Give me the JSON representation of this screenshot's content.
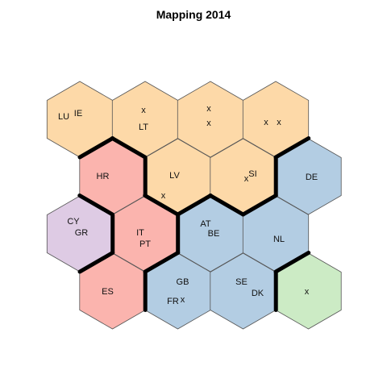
{
  "title": "Mapping 2014",
  "cluster_colors": {
    "orange": "#fdd9a8",
    "blue": "#b3cde3",
    "red": "#fbb4ae",
    "purple": "#decbe4",
    "green": "#ccebc5"
  },
  "rows": [
    [
      {
        "cluster": "orange",
        "labels": [
          "LU",
          "IE"
        ]
      },
      {
        "cluster": "orange",
        "labels": [
          "x",
          "LT"
        ]
      },
      {
        "cluster": "orange",
        "labels": [
          "x",
          "x"
        ]
      },
      {
        "cluster": "orange",
        "labels": [
          "x",
          "x"
        ]
      }
    ],
    [
      {
        "cluster": "red",
        "labels": [
          "HR"
        ]
      },
      {
        "cluster": "orange",
        "labels": [
          "LV",
          "x"
        ]
      },
      {
        "cluster": "orange",
        "labels": [
          "SI",
          "x"
        ]
      },
      {
        "cluster": "blue",
        "labels": [
          "DE"
        ]
      }
    ],
    [
      {
        "cluster": "purple",
        "labels": [
          "CY",
          "GR"
        ]
      },
      {
        "cluster": "red",
        "labels": [
          "IT",
          "PT"
        ]
      },
      {
        "cluster": "blue",
        "labels": [
          "AT",
          "BE"
        ]
      },
      {
        "cluster": "blue",
        "labels": [
          "NL"
        ]
      }
    ],
    [
      {
        "cluster": "red",
        "labels": [
          "ES"
        ]
      },
      {
        "cluster": "blue",
        "labels": [
          "GB",
          "FR",
          "x"
        ]
      },
      {
        "cluster": "blue",
        "labels": [
          "SE",
          "DK"
        ]
      },
      {
        "cluster": "green",
        "labels": [
          "x"
        ]
      }
    ]
  ]
}
